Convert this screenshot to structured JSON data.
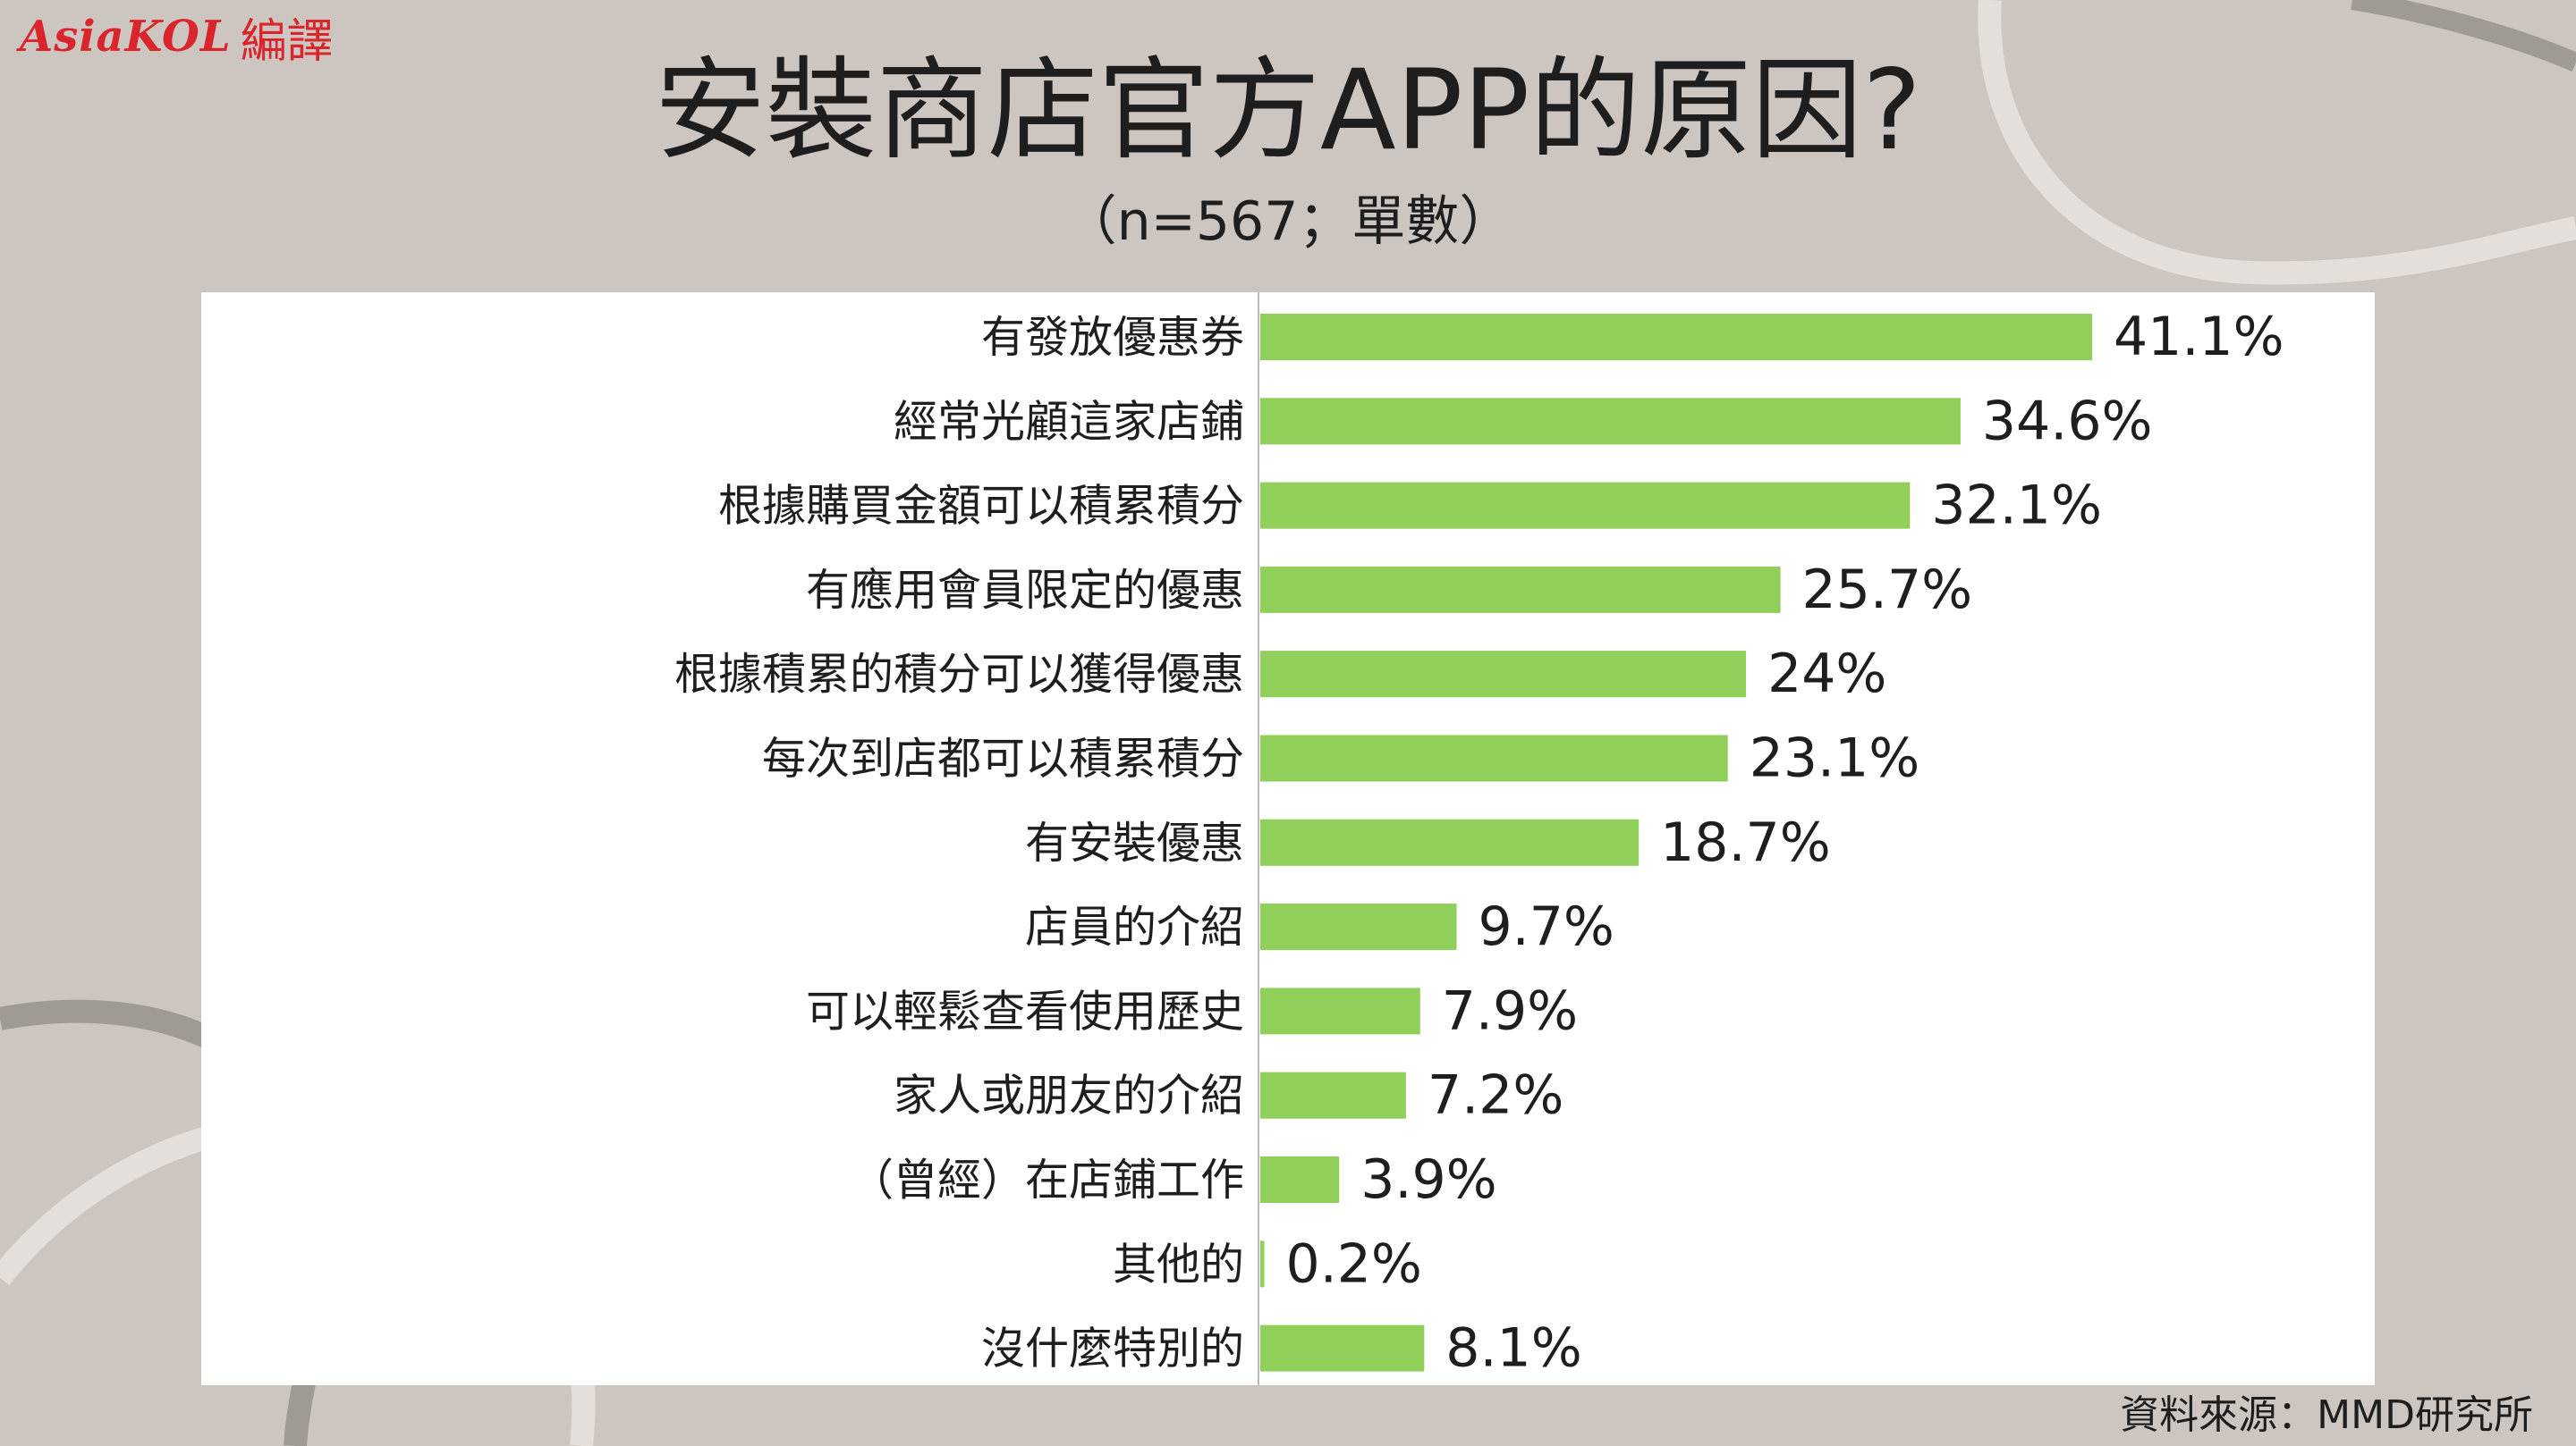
{
  "logo": {
    "latin": "AsiaKOL",
    "cjk": "編譯"
  },
  "header": {
    "title": "安裝商店官方APP的原因?",
    "subtitle": "（n=567；單數）"
  },
  "source": "資料來源：MMD研究所",
  "colors": {
    "background": "#cdc6c0",
    "bar": "#8fcf5a",
    "logo": "#d9252b",
    "axis": "#bbbbbb"
  },
  "chart_data": {
    "type": "bar",
    "orientation": "horizontal",
    "categories": [
      "有發放優惠券",
      "經常光顧這家店鋪",
      "根據購買金額可以積累積分",
      "有應用會員限定的優惠",
      "根據積累的積分可以獲得優惠",
      "每次到店都可以積累積分",
      "有安裝優惠",
      "店員的介紹",
      "可以輕鬆查看使用歷史",
      "家人或朋友的介紹",
      "（曾經）在店鋪工作",
      "其他的",
      "沒什麼特別的"
    ],
    "values": [
      41.1,
      34.6,
      32.1,
      25.7,
      24,
      23.1,
      18.7,
      9.7,
      7.9,
      7.2,
      3.9,
      0.2,
      8.1
    ],
    "value_labels": [
      "41.1%",
      "34.6%",
      "32.1%",
      "25.7%",
      "24%",
      "23.1%",
      "18.7%",
      "9.7%",
      "7.9%",
      "7.2%",
      "3.9%",
      "0.2%",
      "8.1%"
    ],
    "xlim": [
      0,
      41.1
    ],
    "grid": false,
    "legend": "none"
  }
}
